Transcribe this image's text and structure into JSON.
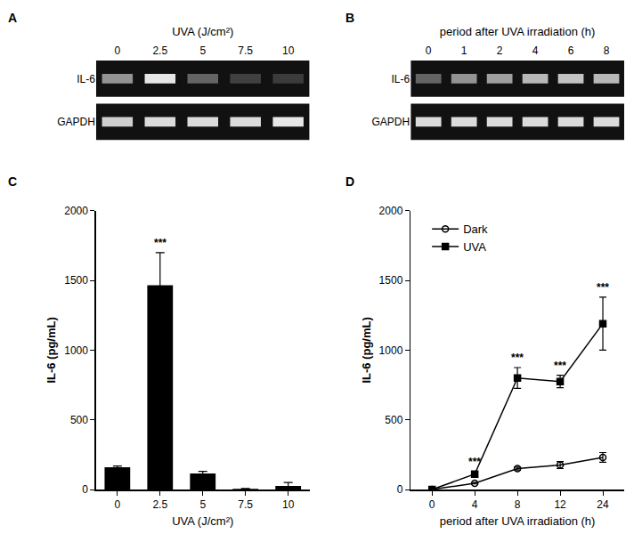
{
  "chart_data": [
    {
      "type": "gel",
      "panel_label": "A",
      "title": "UVA (J/cm²)",
      "lanes": [
        "0",
        "2.5",
        "5",
        "7.5",
        "10"
      ],
      "rows": [
        {
          "name": "IL-6",
          "intensity": [
            0.55,
            0.9,
            0.35,
            0.2,
            0.18
          ]
        },
        {
          "name": "GAPDH",
          "intensity": [
            0.8,
            0.85,
            0.85,
            0.85,
            0.9
          ]
        }
      ]
    },
    {
      "type": "gel",
      "panel_label": "B",
      "title": "period after UVA irradiation (h)",
      "lanes": [
        "0",
        "1",
        "2",
        "4",
        "6",
        "8"
      ],
      "rows": [
        {
          "name": "IL-6",
          "intensity": [
            0.35,
            0.55,
            0.6,
            0.7,
            0.75,
            0.7
          ]
        },
        {
          "name": "GAPDH",
          "intensity": [
            0.85,
            0.85,
            0.85,
            0.85,
            0.85,
            0.85
          ]
        }
      ]
    },
    {
      "type": "bar",
      "panel_label": "C",
      "categories": [
        "0",
        "2.5",
        "5",
        "7.5",
        "10"
      ],
      "values": [
        160,
        1465,
        115,
        5,
        25
      ],
      "errors": [
        8,
        235,
        15,
        3,
        25
      ],
      "color": "#000000",
      "x_label": "UVA (J/cm²)",
      "y_label": "IL-6 (pg/mL)",
      "ylim": [
        0,
        2000
      ],
      "yticks": [
        0,
        500,
        1000,
        1500,
        2000
      ],
      "annotations": [
        {
          "text": "***",
          "category": "2.5"
        }
      ]
    },
    {
      "type": "line",
      "panel_label": "D",
      "categories": [
        "0",
        "4",
        "8",
        "12",
        "24"
      ],
      "x_label": "period after UVA irradiation (h)",
      "y_label": "IL-6 (pg/mL)",
      "ylim": [
        0,
        2000
      ],
      "yticks": [
        0,
        500,
        1000,
        1500,
        2000
      ],
      "legend": "upper left",
      "series": [
        {
          "name": "Dark",
          "color": "#000000",
          "marker": "circle-open",
          "line_style": "solid",
          "values": [
            0,
            45,
            150,
            175,
            230
          ],
          "errors": [
            0,
            5,
            10,
            25,
            35
          ]
        },
        {
          "name": "UVA",
          "color": "#000000",
          "marker": "square",
          "line_style": "solid",
          "values": [
            0,
            110,
            800,
            775,
            1190
          ],
          "errors": [
            0,
            20,
            75,
            45,
            190
          ]
        }
      ],
      "annotations": [
        {
          "text": "***",
          "category": "4"
        },
        {
          "text": "***",
          "category": "8"
        },
        {
          "text": "***",
          "category": "12"
        },
        {
          "text": "***",
          "category": "24"
        }
      ]
    }
  ]
}
